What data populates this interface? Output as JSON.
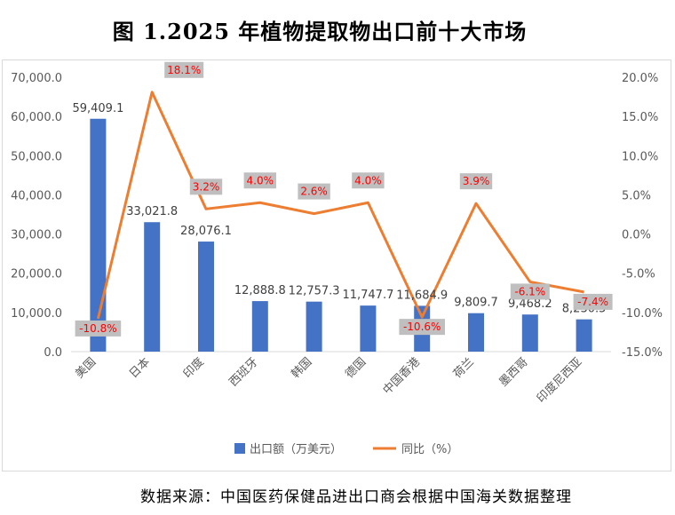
{
  "title": "图 1.2025 年植物提取物出口前十大市场",
  "source_note": "数据来源：中国医药保健品进出口商会根据中国海关数据整理",
  "colors": {
    "bar": "#4472c4",
    "line": "#ed7d31",
    "line_label": "#ff0000",
    "line_label_bg": "#bfbfbf"
  },
  "chart_data": {
    "type": "bar",
    "categories": [
      "美国",
      "日本",
      "印度",
      "西班牙",
      "韩国",
      "德国",
      "中国香港",
      "荷兰",
      "墨西哥",
      "印度尼西亚"
    ],
    "series": [
      {
        "name": "出口额（万美元）",
        "type": "bar",
        "axis": "left",
        "values": [
          59409.1,
          33021.8,
          28076.1,
          12888.8,
          12757.3,
          11747.7,
          11684.9,
          9809.7,
          9468.2,
          8230.5
        ],
        "labels": [
          "59,409.1",
          "33,021.8",
          "28,076.1",
          "12,888.8",
          "12,757.3",
          "11,747.7",
          "11,684.9",
          "9,809.7",
          "9,468.2",
          "8,230.5"
        ]
      },
      {
        "name": "同比（%）",
        "type": "line",
        "axis": "right",
        "values": [
          -10.8,
          18.1,
          3.2,
          4.0,
          2.6,
          4.0,
          -10.6,
          3.9,
          -6.1,
          -7.4
        ],
        "labels": [
          "-10.8%",
          "18.1%",
          "3.2%",
          "4.0%",
          "2.6%",
          "4.0%",
          "-10.6%",
          "3.9%",
          "-6.1%",
          "-7.4%"
        ]
      }
    ],
    "left_axis": {
      "min": 0,
      "max": 70000,
      "step": 10000,
      "tick_labels": [
        "0.0",
        "10,000.0",
        "20,000.0",
        "30,000.0",
        "40,000.0",
        "50,000.0",
        "60,000.0",
        "70,000.0"
      ]
    },
    "right_axis": {
      "min": -15,
      "max": 20,
      "step": 5,
      "tick_labels": [
        "-15.0%",
        "-10.0%",
        "-5.0%",
        "0.0%",
        "5.0%",
        "10.0%",
        "15.0%",
        "20.0%"
      ]
    },
    "legend_position": "bottom",
    "grid": false
  }
}
